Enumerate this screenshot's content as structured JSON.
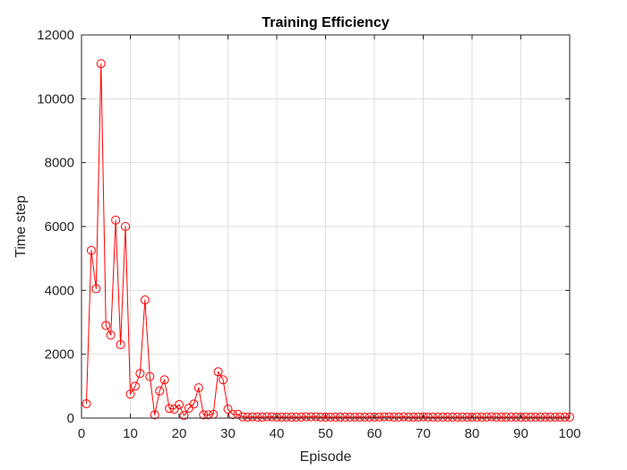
{
  "chart_data": {
    "type": "line",
    "title": "Training Efficiency",
    "xlabel": "Episode",
    "ylabel": "Time step",
    "xlim": [
      0,
      100
    ],
    "ylim": [
      0,
      12000
    ],
    "xticks": [
      0,
      10,
      20,
      30,
      40,
      50,
      60,
      70,
      80,
      90,
      100
    ],
    "yticks": [
      0,
      2000,
      4000,
      6000,
      8000,
      10000,
      12000
    ],
    "grid": true,
    "legend": "none",
    "marker": "circle",
    "color": "#ff0000",
    "series": [
      {
        "x": [
          1,
          2,
          3,
          4,
          5,
          6,
          7,
          8,
          9,
          10,
          11,
          12,
          13,
          14,
          15,
          16,
          17,
          18,
          19,
          20,
          21,
          22,
          23,
          24,
          25,
          26,
          27,
          28,
          29,
          30,
          31,
          32,
          33,
          34,
          35,
          36,
          37,
          38,
          39,
          40,
          41,
          42,
          43,
          44,
          45,
          46,
          47,
          48,
          49,
          50,
          51,
          52,
          53,
          54,
          55,
          56,
          57,
          58,
          59,
          60,
          61,
          62,
          63,
          64,
          65,
          66,
          67,
          68,
          69,
          70,
          71,
          72,
          73,
          74,
          75,
          76,
          77,
          78,
          79,
          80,
          81,
          82,
          83,
          84,
          85,
          86,
          87,
          88,
          89,
          90,
          91,
          92,
          93,
          94,
          95,
          96,
          97,
          98,
          99,
          100
        ],
        "values": [
          450,
          5250,
          4050,
          11100,
          2900,
          2600,
          6200,
          2300,
          6000,
          750,
          1000,
          1400,
          3700,
          1300,
          100,
          850,
          1200,
          300,
          280,
          420,
          80,
          310,
          440,
          950,
          100,
          100,
          120,
          1450,
          1200,
          280,
          110,
          120,
          40,
          30,
          40,
          30,
          30,
          40,
          40,
          30,
          30,
          30,
          30,
          30,
          30,
          40,
          40,
          40,
          30,
          30,
          30,
          30,
          30,
          30,
          30,
          30,
          30,
          30,
          30,
          30,
          30,
          40,
          40,
          30,
          30,
          40,
          30,
          30,
          30,
          40,
          30,
          30,
          30,
          30,
          30,
          30,
          30,
          30,
          30,
          30,
          30,
          30,
          30,
          40,
          30,
          30,
          30,
          30,
          30,
          30,
          30,
          30,
          30,
          30,
          30,
          30,
          30,
          30,
          30,
          30
        ]
      }
    ]
  }
}
